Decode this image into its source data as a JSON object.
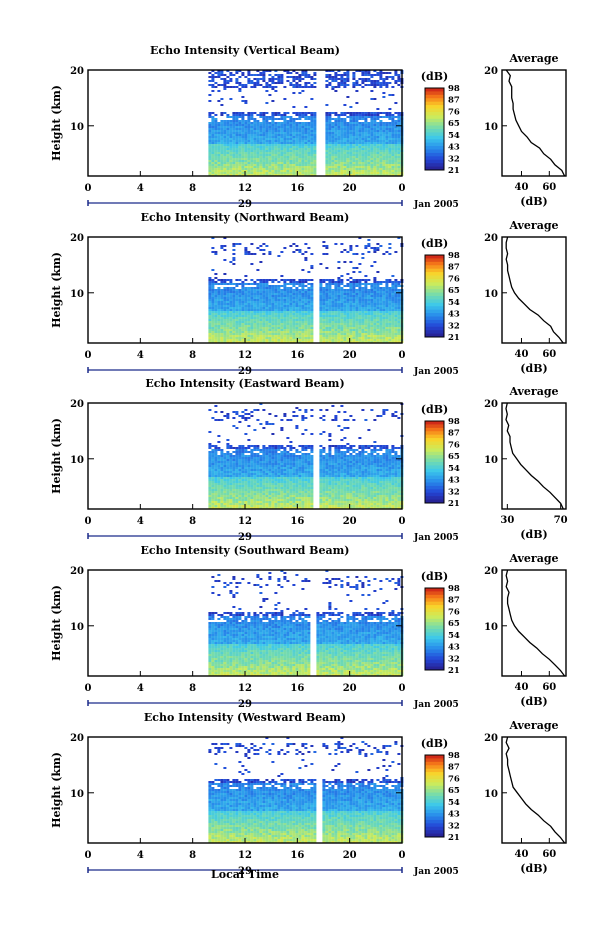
{
  "y_label": "Height (km)",
  "x_label": "Local Time",
  "day": "29",
  "month_label": "Jan 2005",
  "colorbar_unit": "(dB)",
  "avg_title": "Average",
  "avg_xlabel": "(dB)",
  "chart_data": [
    {
      "type": "heatmap",
      "title": "Echo Intensity (Vertical Beam)",
      "x_ticks": [
        "0",
        "4",
        "8",
        "12",
        "16",
        "20",
        "0"
      ],
      "y_ticks": [
        "10",
        "20"
      ],
      "xlim": [
        0,
        24
      ],
      "ylim": [
        1,
        20
      ],
      "data_start_hour": 9.2,
      "gap_hours": [
        17.4,
        18.0
      ],
      "colorbar_ticks": [
        "98",
        "87",
        "76",
        "65",
        "54",
        "43",
        "32",
        "21"
      ],
      "vmin": 21,
      "vmax": 98,
      "average_profile": {
        "x_ticks": [
          "40",
          "60"
        ],
        "xlim": [
          26,
          72
        ],
        "heights_km": [
          1,
          2,
          3,
          4,
          5,
          6,
          7,
          8,
          9,
          10,
          11,
          12,
          13,
          14,
          15,
          16,
          17,
          18,
          19,
          20
        ],
        "values_db": [
          71,
          69,
          64,
          61,
          56,
          53,
          47,
          44,
          40,
          38,
          36,
          35,
          34,
          34,
          33,
          33,
          33,
          31,
          32,
          29
        ]
      }
    },
    {
      "type": "heatmap",
      "title": "Echo Intensity (Northward Beam)",
      "x_ticks": [
        "0",
        "4",
        "8",
        "12",
        "16",
        "20",
        "0"
      ],
      "y_ticks": [
        "10",
        "20"
      ],
      "xlim": [
        0,
        24
      ],
      "ylim": [
        1,
        20
      ],
      "data_start_hour": 9.2,
      "gap_hours": [
        17.1,
        17.6
      ],
      "colorbar_ticks": [
        "98",
        "87",
        "76",
        "65",
        "54",
        "43",
        "32",
        "21"
      ],
      "vmin": 21,
      "vmax": 98,
      "average_profile": {
        "x_ticks": [
          "40",
          "60"
        ],
        "xlim": [
          26,
          72
        ],
        "heights_km": [
          1,
          2,
          3,
          4,
          5,
          6,
          7,
          8,
          9,
          10,
          11,
          12,
          13,
          14,
          15,
          16,
          17,
          18,
          19,
          20
        ],
        "values_db": [
          70,
          67,
          63,
          61,
          56,
          52,
          46,
          42,
          38,
          35,
          33,
          32,
          31,
          30,
          30,
          29,
          30,
          29,
          29,
          30
        ]
      }
    },
    {
      "type": "heatmap",
      "title": "Echo Intensity (Eastward Beam)",
      "x_ticks": [
        "0",
        "4",
        "8",
        "12",
        "16",
        "20",
        "0"
      ],
      "y_ticks": [
        "10",
        "20"
      ],
      "xlim": [
        0,
        24
      ],
      "ylim": [
        1,
        20
      ],
      "data_start_hour": 9.2,
      "gap_hours": [
        17.1,
        17.6
      ],
      "colorbar_ticks": [
        "98",
        "87",
        "76",
        "65",
        "54",
        "43",
        "32",
        "21"
      ],
      "vmin": 21,
      "vmax": 98,
      "average_profile": {
        "x_ticks": [
          "30",
          "70"
        ],
        "xlim": [
          26,
          74
        ],
        "heights_km": [
          1,
          2,
          3,
          4,
          5,
          6,
          7,
          8,
          9,
          10,
          11,
          12,
          13,
          14,
          15,
          16,
          17,
          18,
          19,
          20
        ],
        "values_db": [
          72,
          70,
          66,
          62,
          57,
          53,
          48,
          44,
          40,
          37,
          34,
          33,
          32,
          32,
          30,
          31,
          29,
          30,
          29,
          30
        ]
      }
    },
    {
      "type": "heatmap",
      "title": "Echo Intensity (Southward Beam)",
      "x_ticks": [
        "0",
        "4",
        "8",
        "12",
        "16",
        "20",
        "0"
      ],
      "y_ticks": [
        "10",
        "20"
      ],
      "xlim": [
        0,
        24
      ],
      "ylim": [
        1,
        20
      ],
      "data_start_hour": 9.2,
      "gap_hours": [
        16.9,
        17.4
      ],
      "colorbar_ticks": [
        "98",
        "87",
        "76",
        "65",
        "54",
        "43",
        "32",
        "21"
      ],
      "vmin": 21,
      "vmax": 98,
      "average_profile": {
        "x_ticks": [
          "40",
          "60"
        ],
        "xlim": [
          26,
          72
        ],
        "heights_km": [
          1,
          2,
          3,
          4,
          5,
          6,
          7,
          8,
          9,
          10,
          11,
          12,
          13,
          14,
          15,
          16,
          17,
          18,
          19,
          20
        ],
        "values_db": [
          71,
          68,
          64,
          60,
          55,
          51,
          46,
          42,
          38,
          35,
          33,
          32,
          31,
          30,
          30,
          31,
          29,
          30,
          29,
          30
        ]
      }
    },
    {
      "type": "heatmap",
      "title": "Echo Intensity (Westward Beam)",
      "x_ticks": [
        "0",
        "4",
        "8",
        "12",
        "16",
        "20",
        "0"
      ],
      "y_ticks": [
        "10",
        "20"
      ],
      "xlim": [
        0,
        24
      ],
      "ylim": [
        1,
        20
      ],
      "data_start_hour": 9.2,
      "gap_hours": [
        17.3,
        17.8
      ],
      "colorbar_ticks": [
        "98",
        "87",
        "76",
        "65",
        "54",
        "43",
        "32",
        "21"
      ],
      "vmin": 21,
      "vmax": 98,
      "average_profile": {
        "x_ticks": [
          "40",
          "60"
        ],
        "xlim": [
          26,
          72
        ],
        "heights_km": [
          1,
          2,
          3,
          4,
          5,
          6,
          7,
          8,
          9,
          10,
          11,
          12,
          13,
          14,
          15,
          16,
          17,
          18,
          19,
          20
        ],
        "values_db": [
          71,
          68,
          64,
          61,
          56,
          52,
          47,
          43,
          40,
          37,
          34,
          33,
          32,
          31,
          30,
          30,
          29,
          31,
          29,
          30
        ]
      }
    }
  ]
}
